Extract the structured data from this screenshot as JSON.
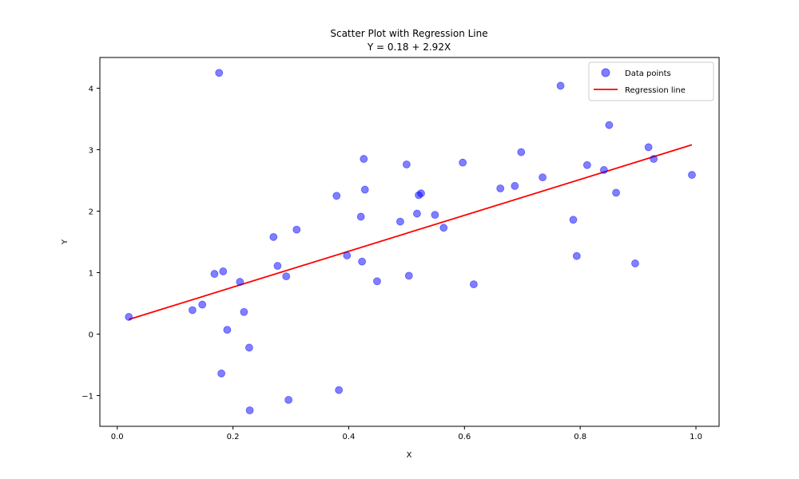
{
  "chart_data": {
    "type": "scatter",
    "title": "Scatter Plot with Regression Line",
    "subtitle": "Y = 0.18 + 2.92X",
    "xlabel": "X",
    "ylabel": "Y",
    "xlim": [
      -0.03,
      1.04
    ],
    "ylim": [
      -1.5,
      4.5
    ],
    "xticks": [
      0.0,
      0.2,
      0.4,
      0.6,
      0.8,
      1.0
    ],
    "xtick_labels": [
      "0.0",
      "0.2",
      "0.4",
      "0.6",
      "0.8",
      "1.0"
    ],
    "yticks": [
      -1,
      0,
      1,
      2,
      3,
      4
    ],
    "ytick_labels": [
      "−1",
      "0",
      "1",
      "2",
      "3",
      "4"
    ],
    "grid": false,
    "legend_position": "top-right",
    "series": [
      {
        "name": "Data points",
        "kind": "scatter",
        "color": "#0000ff",
        "opacity": 0.5,
        "points": [
          [
            0.02,
            0.28
          ],
          [
            0.13,
            0.39
          ],
          [
            0.147,
            0.48
          ],
          [
            0.168,
            0.98
          ],
          [
            0.176,
            4.25
          ],
          [
            0.18,
            -0.64
          ],
          [
            0.183,
            1.02
          ],
          [
            0.19,
            0.07
          ],
          [
            0.212,
            0.85
          ],
          [
            0.219,
            0.36
          ],
          [
            0.228,
            -0.22
          ],
          [
            0.229,
            -1.24
          ],
          [
            0.27,
            1.58
          ],
          [
            0.277,
            1.11
          ],
          [
            0.292,
            0.94
          ],
          [
            0.296,
            -1.07
          ],
          [
            0.31,
            1.7
          ],
          [
            0.379,
            2.25
          ],
          [
            0.383,
            -0.91
          ],
          [
            0.397,
            1.28
          ],
          [
            0.421,
            1.91
          ],
          [
            0.423,
            1.18
          ],
          [
            0.426,
            2.85
          ],
          [
            0.428,
            2.35
          ],
          [
            0.449,
            0.86
          ],
          [
            0.489,
            1.83
          ],
          [
            0.5,
            2.76
          ],
          [
            0.504,
            0.95
          ],
          [
            0.518,
            1.96
          ],
          [
            0.521,
            2.26
          ],
          [
            0.525,
            2.29
          ],
          [
            0.549,
            1.94
          ],
          [
            0.564,
            1.73
          ],
          [
            0.597,
            2.79
          ],
          [
            0.616,
            0.81
          ],
          [
            0.662,
            2.37
          ],
          [
            0.687,
            2.41
          ],
          [
            0.698,
            2.96
          ],
          [
            0.735,
            2.55
          ],
          [
            0.766,
            4.04
          ],
          [
            0.788,
            1.86
          ],
          [
            0.794,
            1.27
          ],
          [
            0.812,
            2.75
          ],
          [
            0.841,
            2.67
          ],
          [
            0.85,
            3.4
          ],
          [
            0.862,
            2.3
          ],
          [
            0.895,
            1.15
          ],
          [
            0.918,
            3.04
          ],
          [
            0.927,
            2.85
          ],
          [
            0.993,
            2.59
          ]
        ]
      },
      {
        "name": "Regression line",
        "kind": "line",
        "color": "#ff0000",
        "intercept": 0.18,
        "slope": 2.92,
        "x_range": [
          0.02,
          0.993
        ]
      }
    ]
  }
}
